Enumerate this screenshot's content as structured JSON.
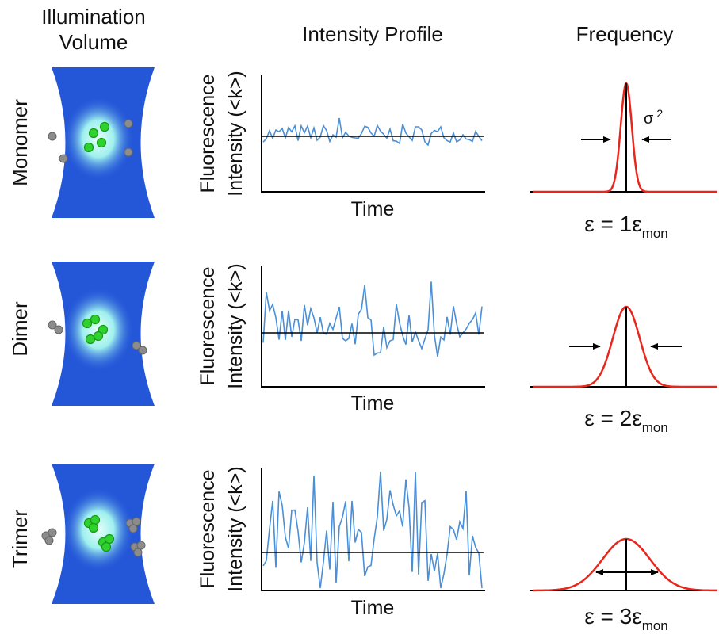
{
  "headers": {
    "illumination": [
      "Illumination",
      "Volume"
    ],
    "intensity": "Intensity Profile",
    "frequency": "Frequency"
  },
  "rows": [
    {
      "label": "Monomer",
      "y_label": [
        "Fluorescence",
        "Intensity (<k>)"
      ],
      "x_label": "Time",
      "epsilon": {
        "main": "ε = 1ε",
        "sub": "mon"
      },
      "variance": {
        "symbol": "σ",
        "sup": "2"
      }
    },
    {
      "label": "Dimer",
      "y_label": [
        "Fluorescence",
        "Intensity (<k>)"
      ],
      "x_label": "Time",
      "epsilon": {
        "main": "ε = 2ε",
        "sub": "mon"
      }
    },
    {
      "label": "Trimer",
      "y_label": [
        "Fluorescence",
        "Intensity (<k>)"
      ],
      "x_label": "Time",
      "epsilon": {
        "main": "ε = 3ε",
        "sub": "mon"
      }
    }
  ]
}
